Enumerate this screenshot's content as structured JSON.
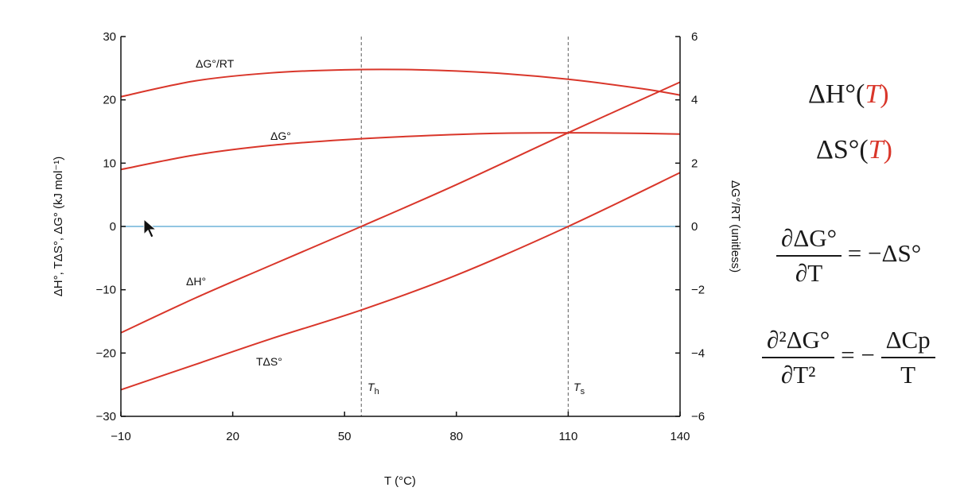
{
  "chart_data": {
    "type": "line",
    "xlabel": "T (°C)",
    "ylabel_left": "ΔH°, TΔS°, ΔG° (kJ mol⁻¹)",
    "ylabel_right": "ΔG°/RT (unitless)",
    "xlim": [
      -10,
      140
    ],
    "ylim_left": [
      -30,
      30
    ],
    "ylim_right": [
      -6,
      6
    ],
    "xticks": [
      "−10",
      "20",
      "50",
      "80",
      "110",
      "140"
    ],
    "xtick_values": [
      -10,
      20,
      50,
      80,
      110,
      140
    ],
    "yticks_left": [
      "30",
      "20",
      "10",
      "0",
      "−10",
      "−20",
      "−30"
    ],
    "ytick_values_left": [
      30,
      20,
      10,
      0,
      -10,
      -20,
      -30
    ],
    "yticks_right": [
      "6",
      "4",
      "2",
      "0",
      "−2",
      "−4",
      "−6"
    ],
    "ytick_values_right": [
      6,
      4,
      2,
      0,
      -2,
      -4,
      -6
    ],
    "vlines": [
      {
        "x": 54.5,
        "label": "T",
        "sub": "h"
      },
      {
        "x": 110,
        "label": "T",
        "sub": "s"
      }
    ],
    "hline": {
      "y": 0,
      "color": "#6fb3d8"
    },
    "series": [
      {
        "name": "ΔG°/RT",
        "axis": "right",
        "x": [
          -10,
          10,
          30,
          50,
          70,
          90,
          110,
          130,
          140
        ],
        "y": [
          4.1,
          4.6,
          4.85,
          4.95,
          4.95,
          4.85,
          4.65,
          4.35,
          4.15
        ]
      },
      {
        "name": "ΔG°",
        "axis": "left",
        "x": [
          -10,
          10,
          30,
          50,
          70,
          90,
          110,
          130,
          140
        ],
        "y": [
          9.0,
          11.3,
          12.8,
          13.7,
          14.3,
          14.7,
          14.8,
          14.7,
          14.6
        ]
      },
      {
        "name": "ΔH°",
        "axis": "left",
        "x": [
          -10,
          10,
          30,
          54.5,
          80,
          110,
          140
        ],
        "y": [
          -16.8,
          -11.3,
          -6.2,
          0.0,
          6.6,
          14.8,
          22.8
        ]
      },
      {
        "name": "TΔS°",
        "axis": "left",
        "x": [
          -10,
          10,
          30,
          54.5,
          80,
          110,
          140
        ],
        "y": [
          -25.8,
          -21.8,
          -17.8,
          -13.2,
          -7.7,
          0.0,
          8.5
        ]
      }
    ],
    "colors": {
      "curve": "#d9362a",
      "zero_line": "#6fb3d8",
      "vline": "#777777",
      "axis": "#111111"
    }
  },
  "equations": {
    "eq1_prefix": "ΔH°(",
    "eq1_var": "T",
    "eq1_suffix": ")",
    "eq2_prefix": "ΔS°(",
    "eq2_var": "T",
    "eq2_suffix": ")",
    "eq3_num": "∂ΔG°",
    "eq3_den": "∂T",
    "eq3_rhs": "= −ΔS°",
    "eq4_num": "∂²ΔG°",
    "eq4_den": "∂T²",
    "eq4_rhs_pre": "= −",
    "eq4_rhs_num": "ΔCp",
    "eq4_rhs_den": "T"
  }
}
